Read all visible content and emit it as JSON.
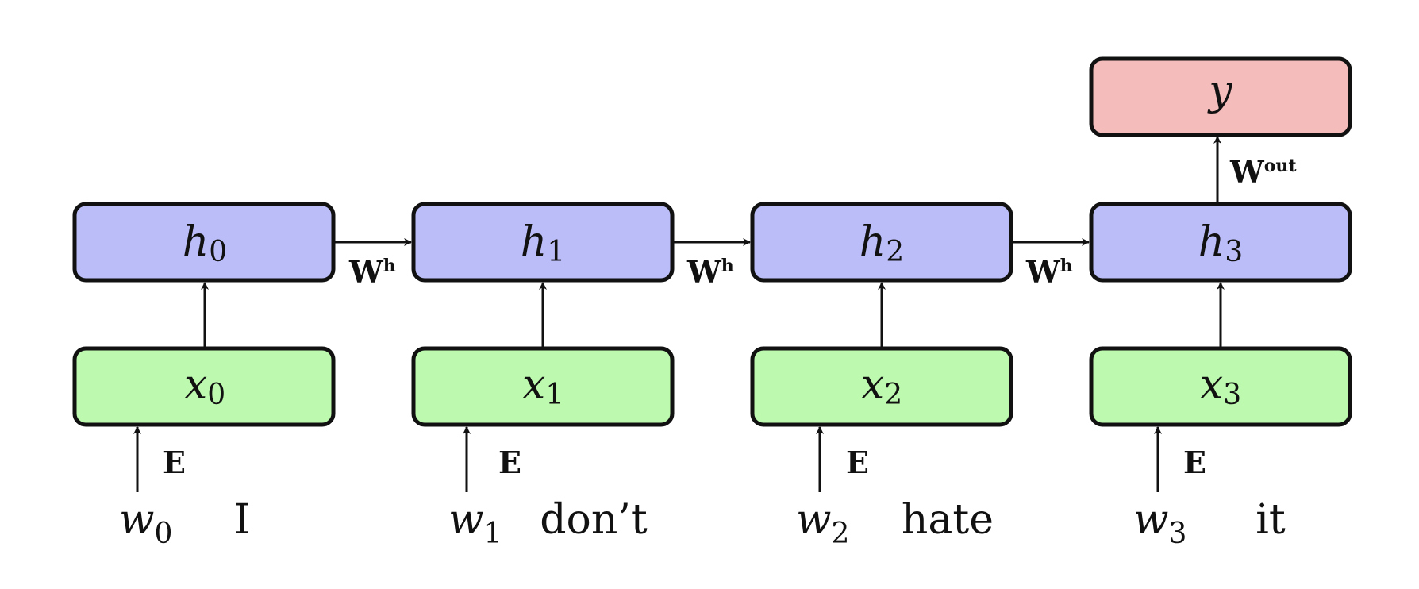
{
  "colors": {
    "hidden_fill": "#bbbdf8",
    "input_fill": "#bdfab0",
    "output_fill": "#f4bcbb",
    "stroke": "#111111"
  },
  "hidden": [
    {
      "var": "h",
      "sub": "0"
    },
    {
      "var": "h",
      "sub": "1"
    },
    {
      "var": "h",
      "sub": "2"
    },
    {
      "var": "h",
      "sub": "3"
    }
  ],
  "inputs": [
    {
      "var": "x",
      "sub": "0"
    },
    {
      "var": "x",
      "sub": "1"
    },
    {
      "var": "x",
      "sub": "2"
    },
    {
      "var": "x",
      "sub": "3"
    }
  ],
  "words": [
    {
      "var": "w",
      "sub": "0",
      "token": "I"
    },
    {
      "var": "w",
      "sub": "1",
      "token": "don’t"
    },
    {
      "var": "w",
      "sub": "2",
      "token": "hate"
    },
    {
      "var": "w",
      "sub": "3",
      "token": "it"
    }
  ],
  "output": {
    "var": "y"
  },
  "labels": {
    "embedding": "E",
    "recurrent_base": "W",
    "recurrent_sup": "h",
    "output_base": "W",
    "output_sup": "out"
  }
}
